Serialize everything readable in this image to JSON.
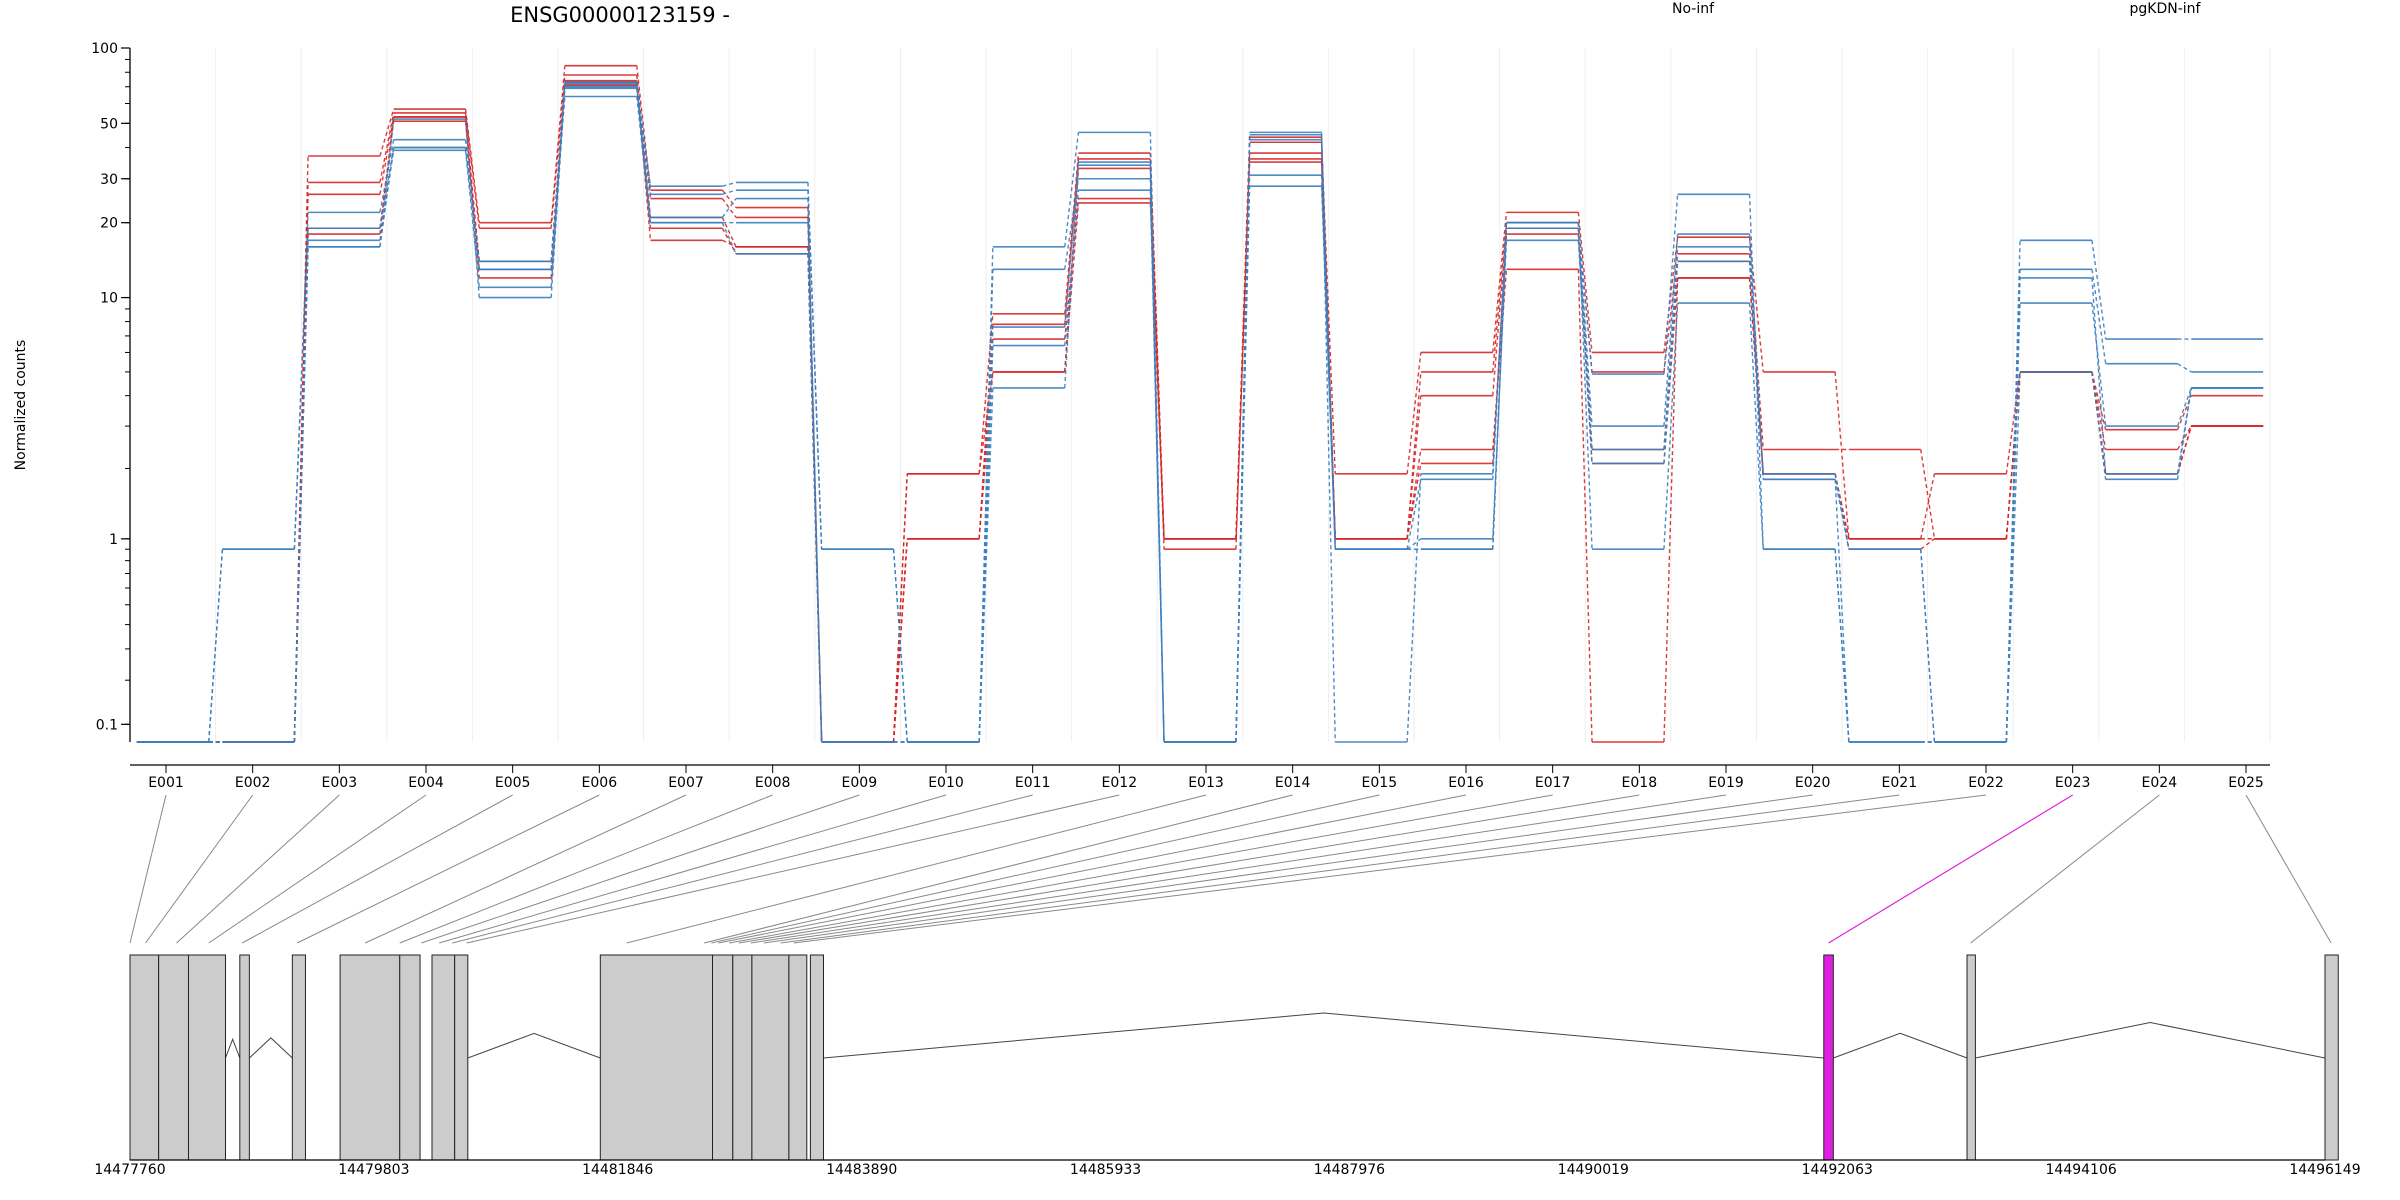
{
  "chart_data": {
    "type": "line",
    "title": "ENSG00000123159 -",
    "ylabel": "Normalized counts",
    "xlabel": "",
    "y_scale": "log10(count + 0.1)",
    "ylim": [
      0.07,
      100
    ],
    "y_ticks": [
      0.1,
      1,
      10,
      20,
      30,
      50,
      100
    ],
    "grid": "light vertical grid",
    "legend": [
      {
        "name": "No-inf",
        "color": "#d62728",
        "position": "top-center"
      },
      {
        "name": "pgKDN-inf",
        "color": "#3a7fbf",
        "position": "top-right"
      }
    ],
    "categories": [
      "E001",
      "E002",
      "E003",
      "E004",
      "E005",
      "E006",
      "E007",
      "E008",
      "E009",
      "E010",
      "E011",
      "E012",
      "E013",
      "E014",
      "E015",
      "E016",
      "E017",
      "E018",
      "E019",
      "E020",
      "E021",
      "E022",
      "E023",
      "E024",
      "E025"
    ],
    "series": [
      {
        "group": "No-inf",
        "values": [
          0.07,
          0.07,
          37,
          57,
          20,
          85,
          27,
          23,
          0.07,
          1.9,
          8.6,
          38,
          1,
          42,
          1.9,
          6.0,
          22,
          6.0,
          17.5,
          5.0,
          1.0,
          1.9,
          5.0,
          2.9,
          4.0
        ]
      },
      {
        "group": "No-inf",
        "values": [
          0.07,
          0.07,
          29,
          55,
          19,
          78,
          25,
          21,
          0.07,
          1.0,
          7.8,
          36,
          1,
          44,
          1.0,
          5.0,
          20,
          5.0,
          15,
          2.4,
          2.4,
          1.0,
          5.0,
          2.4,
          3.0
        ]
      },
      {
        "group": "No-inf",
        "values": [
          0.07,
          0.07,
          26,
          53,
          14,
          73,
          21,
          16,
          0.07,
          1.9,
          5.0,
          33,
          0.9,
          38,
          1.0,
          4.0,
          19,
          2.4,
          14,
          1.9,
          0.9,
          1.0,
          5.0,
          1.9,
          3.0
        ]
      },
      {
        "group": "No-inf",
        "values": [
          0.07,
          0.07,
          19,
          51,
          12,
          71,
          19,
          15,
          0.07,
          1.0,
          6.8,
          25,
          1,
          35,
          1.0,
          2.4,
          13,
          0.07,
          12,
          1.9,
          1.0,
          1.0,
          5.0,
          1.9,
          3.0
        ]
      },
      {
        "group": "No-inf",
        "values": [
          0.07,
          0.07,
          18,
          53,
          13,
          74,
          17,
          16,
          0.07,
          1.0,
          5.0,
          24,
          1,
          36,
          1.0,
          2.1,
          18,
          2.1,
          12,
          1.9,
          1.0,
          1.0,
          5.0,
          1.9,
          3.0
        ]
      },
      {
        "group": "pgKDN-inf",
        "values": [
          0.07,
          0.9,
          22,
          43,
          14,
          73,
          28,
          29,
          0.9,
          0.07,
          16,
          46,
          0.07,
          46,
          0.07,
          1.9,
          20,
          4.9,
          26,
          0.9,
          0.07,
          0.07,
          17,
          6.8,
          6.8
        ]
      },
      {
        "group": "pgKDN-inf",
        "values": [
          0.07,
          0.9,
          19,
          40,
          13,
          69,
          26,
          27,
          0.9,
          0.07,
          13,
          30,
          0.07,
          45,
          0.9,
          1.8,
          20,
          3.0,
          18,
          1.8,
          0.07,
          0.07,
          13,
          5.4,
          5.0
        ]
      },
      {
        "group": "pgKDN-inf",
        "values": [
          0.07,
          0.07,
          17,
          39,
          11,
          72,
          21,
          25,
          0.07,
          0.07,
          7.6,
          34,
          0.07,
          31,
          0.9,
          1.0,
          17,
          2.1,
          14,
          1.8,
          0.9,
          0.07,
          9.5,
          3.0,
          4.3
        ]
      },
      {
        "group": "pgKDN-inf",
        "values": [
          0.07,
          0.07,
          16,
          40,
          13,
          64,
          20,
          20,
          0.07,
          0.07,
          6.4,
          27,
          0.07,
          28,
          0.9,
          0.9,
          20,
          0.9,
          9.5,
          0.9,
          0.07,
          0.07,
          12,
          1.9,
          4.3
        ]
      },
      {
        "group": "pgKDN-inf",
        "values": [
          0.07,
          0.07,
          16,
          52,
          10,
          70,
          20,
          15,
          0.07,
          0.07,
          4.3,
          35,
          0.07,
          43,
          0.9,
          0.9,
          19,
          2.4,
          16,
          1.9,
          0.9,
          0.07,
          5.0,
          1.8,
          4.3
        ]
      }
    ],
    "gene_model": {
      "coord_ticks": [
        14477760,
        14479803,
        14481846,
        14483890,
        14485933,
        14487976,
        14490019,
        14492063,
        14494106,
        14496149
      ],
      "exons": [
        {
          "start": 14477760,
          "end": 14478000
        },
        {
          "start": 14478000,
          "end": 14478250
        },
        {
          "start": 14478250,
          "end": 14478560
        },
        {
          "start": 14478680,
          "end": 14478760
        },
        {
          "start": 14479120,
          "end": 14479230
        },
        {
          "start": 14479520,
          "end": 14480020
        },
        {
          "start": 14480020,
          "end": 14480190
        },
        {
          "start": 14480290,
          "end": 14480480
        },
        {
          "start": 14480480,
          "end": 14480590
        },
        {
          "start": 14481700,
          "end": 14482640
        },
        {
          "start": 14482640,
          "end": 14482810
        },
        {
          "start": 14482810,
          "end": 14482970
        },
        {
          "start": 14482970,
          "end": 14483280
        },
        {
          "start": 14483280,
          "end": 14483430
        },
        {
          "start": 14483460,
          "end": 14483570
        },
        {
          "start": 14491950,
          "end": 14492030,
          "highlight": true
        },
        {
          "start": 14493150,
          "end": 14493220
        },
        {
          "start": 14496149,
          "end": 14496260
        }
      ],
      "introns": [
        {
          "from": 14478560,
          "to": 14478680
        },
        {
          "from": 14478760,
          "to": 14479120
        },
        {
          "from": 14480590,
          "to": 14481700
        },
        {
          "from": 14483570,
          "to": 14491950
        },
        {
          "from": 14492030,
          "to": 14493150
        },
        {
          "from": 14493220,
          "to": 14496149
        }
      ],
      "exon_positions": [
        14477760,
        14477890,
        14478150,
        14478420,
        14478700,
        14479160,
        14479730,
        14480020,
        14480200,
        14480350,
        14480460,
        14480580,
        14481920,
        14482570,
        14482630,
        14482690,
        14482780,
        14482860,
        14482960,
        14483070,
        14483210,
        14483320,
        14491990,
        14493180,
        14496200
      ],
      "highlight_color": "#e020e0"
    }
  }
}
